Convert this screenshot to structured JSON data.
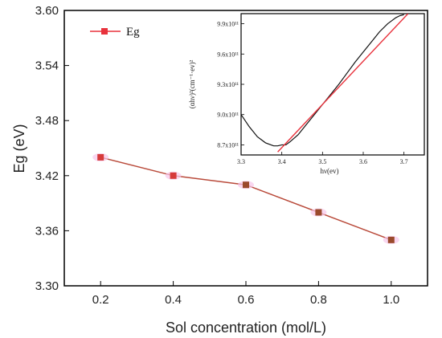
{
  "chart_data": [
    {
      "type": "line",
      "title": "",
      "xlabel": "Sol concentration (mol/L)",
      "ylabel": "Eg (eV)",
      "xlim": [
        0.1,
        1.1
      ],
      "ylim": [
        3.3,
        3.6
      ],
      "x_ticks": [
        "0.2",
        "0.4",
        "0.6",
        "0.8",
        "1.0"
      ],
      "y_ticks": [
        "3.30",
        "3.36",
        "3.42",
        "3.48",
        "3.54",
        "3.60"
      ],
      "legend_position": "top-left",
      "grid": false,
      "series": [
        {
          "name": "Eg",
          "color": "#e8323c",
          "marker": "square",
          "x": [
            0.2,
            0.4,
            0.6,
            0.8,
            1.0
          ],
          "y": [
            3.44,
            3.42,
            3.41,
            3.38,
            3.35
          ]
        }
      ]
    },
    {
      "type": "line",
      "title": "",
      "xlabel": "hν(ev)",
      "ylabel": "(αhν)²(cm⁻¹·ev)²",
      "xlim": [
        3.3,
        3.75
      ],
      "ylim": [
        860000000000.0,
        1000000000000.0
      ],
      "x_ticks": [
        "3.3",
        "3.4",
        "3.5",
        "3.6",
        "3.7"
      ],
      "y_ticks": [
        "8.7x10¹¹",
        "9.0x10¹¹",
        "9.3x10¹¹",
        "9.6x10¹¹",
        "9.9x10¹¹"
      ],
      "grid": false,
      "series": [
        {
          "color": "#111111",
          "x": [
            3.3,
            3.32,
            3.34,
            3.36,
            3.38,
            3.39,
            3.4,
            3.41,
            3.42,
            3.44,
            3.46,
            3.48,
            3.5,
            3.52,
            3.54,
            3.56,
            3.58,
            3.6,
            3.62,
            3.64,
            3.66,
            3.67,
            3.68,
            3.69,
            3.7
          ],
          "y": [
            900000000000.0,
            888000000000.0,
            878000000000.0,
            872000000000.0,
            869000000000.0,
            869000000000.0,
            870000000000.0,
            870000000000.0,
            873000000000.0,
            880000000000.0,
            890000000000.0,
            900000000000.0,
            910000000000.0,
            920000000000.0,
            930000000000.0,
            941000000000.0,
            952000000000.0,
            962000000000.0,
            972000000000.0,
            982000000000.0,
            990000000000.0,
            993000000000.0,
            996000000000.0,
            998000000000.0,
            999000000000.0
          ]
        },
        {
          "color": "#e8323c",
          "x": [
            3.39,
            3.71
          ],
          "y": [
            863000000000.0,
            1000000000000.0
          ]
        }
      ]
    }
  ]
}
